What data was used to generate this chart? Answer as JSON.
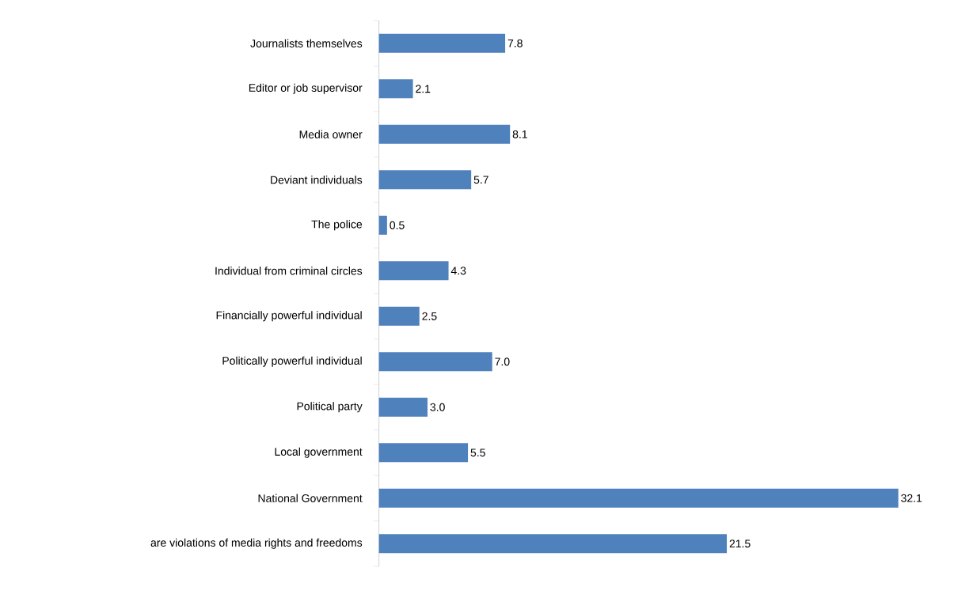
{
  "chart_data": {
    "type": "bar",
    "orientation": "horizontal",
    "color": "#4f81bd",
    "categories": [
      "Journalists themselves",
      "Editor or job supervisor",
      "Media owner",
      "Deviant individuals",
      "The police",
      "Individual from criminal circles",
      "Financially powerful individual",
      "Politically powerful individual",
      "Political party",
      "Local government",
      "National Government",
      "are violations of media rights and freedoms"
    ],
    "values": [
      7.8,
      2.1,
      8.1,
      5.7,
      0.5,
      4.3,
      2.5,
      7.0,
      3.0,
      5.5,
      32.1,
      21.5
    ],
    "value_labels": [
      "7.8",
      "2.1",
      "8.1",
      "5.7",
      "0.5",
      "4.3",
      "2.5",
      "7.0",
      "3.0",
      "5.5",
      "32.1",
      "21.5"
    ]
  }
}
